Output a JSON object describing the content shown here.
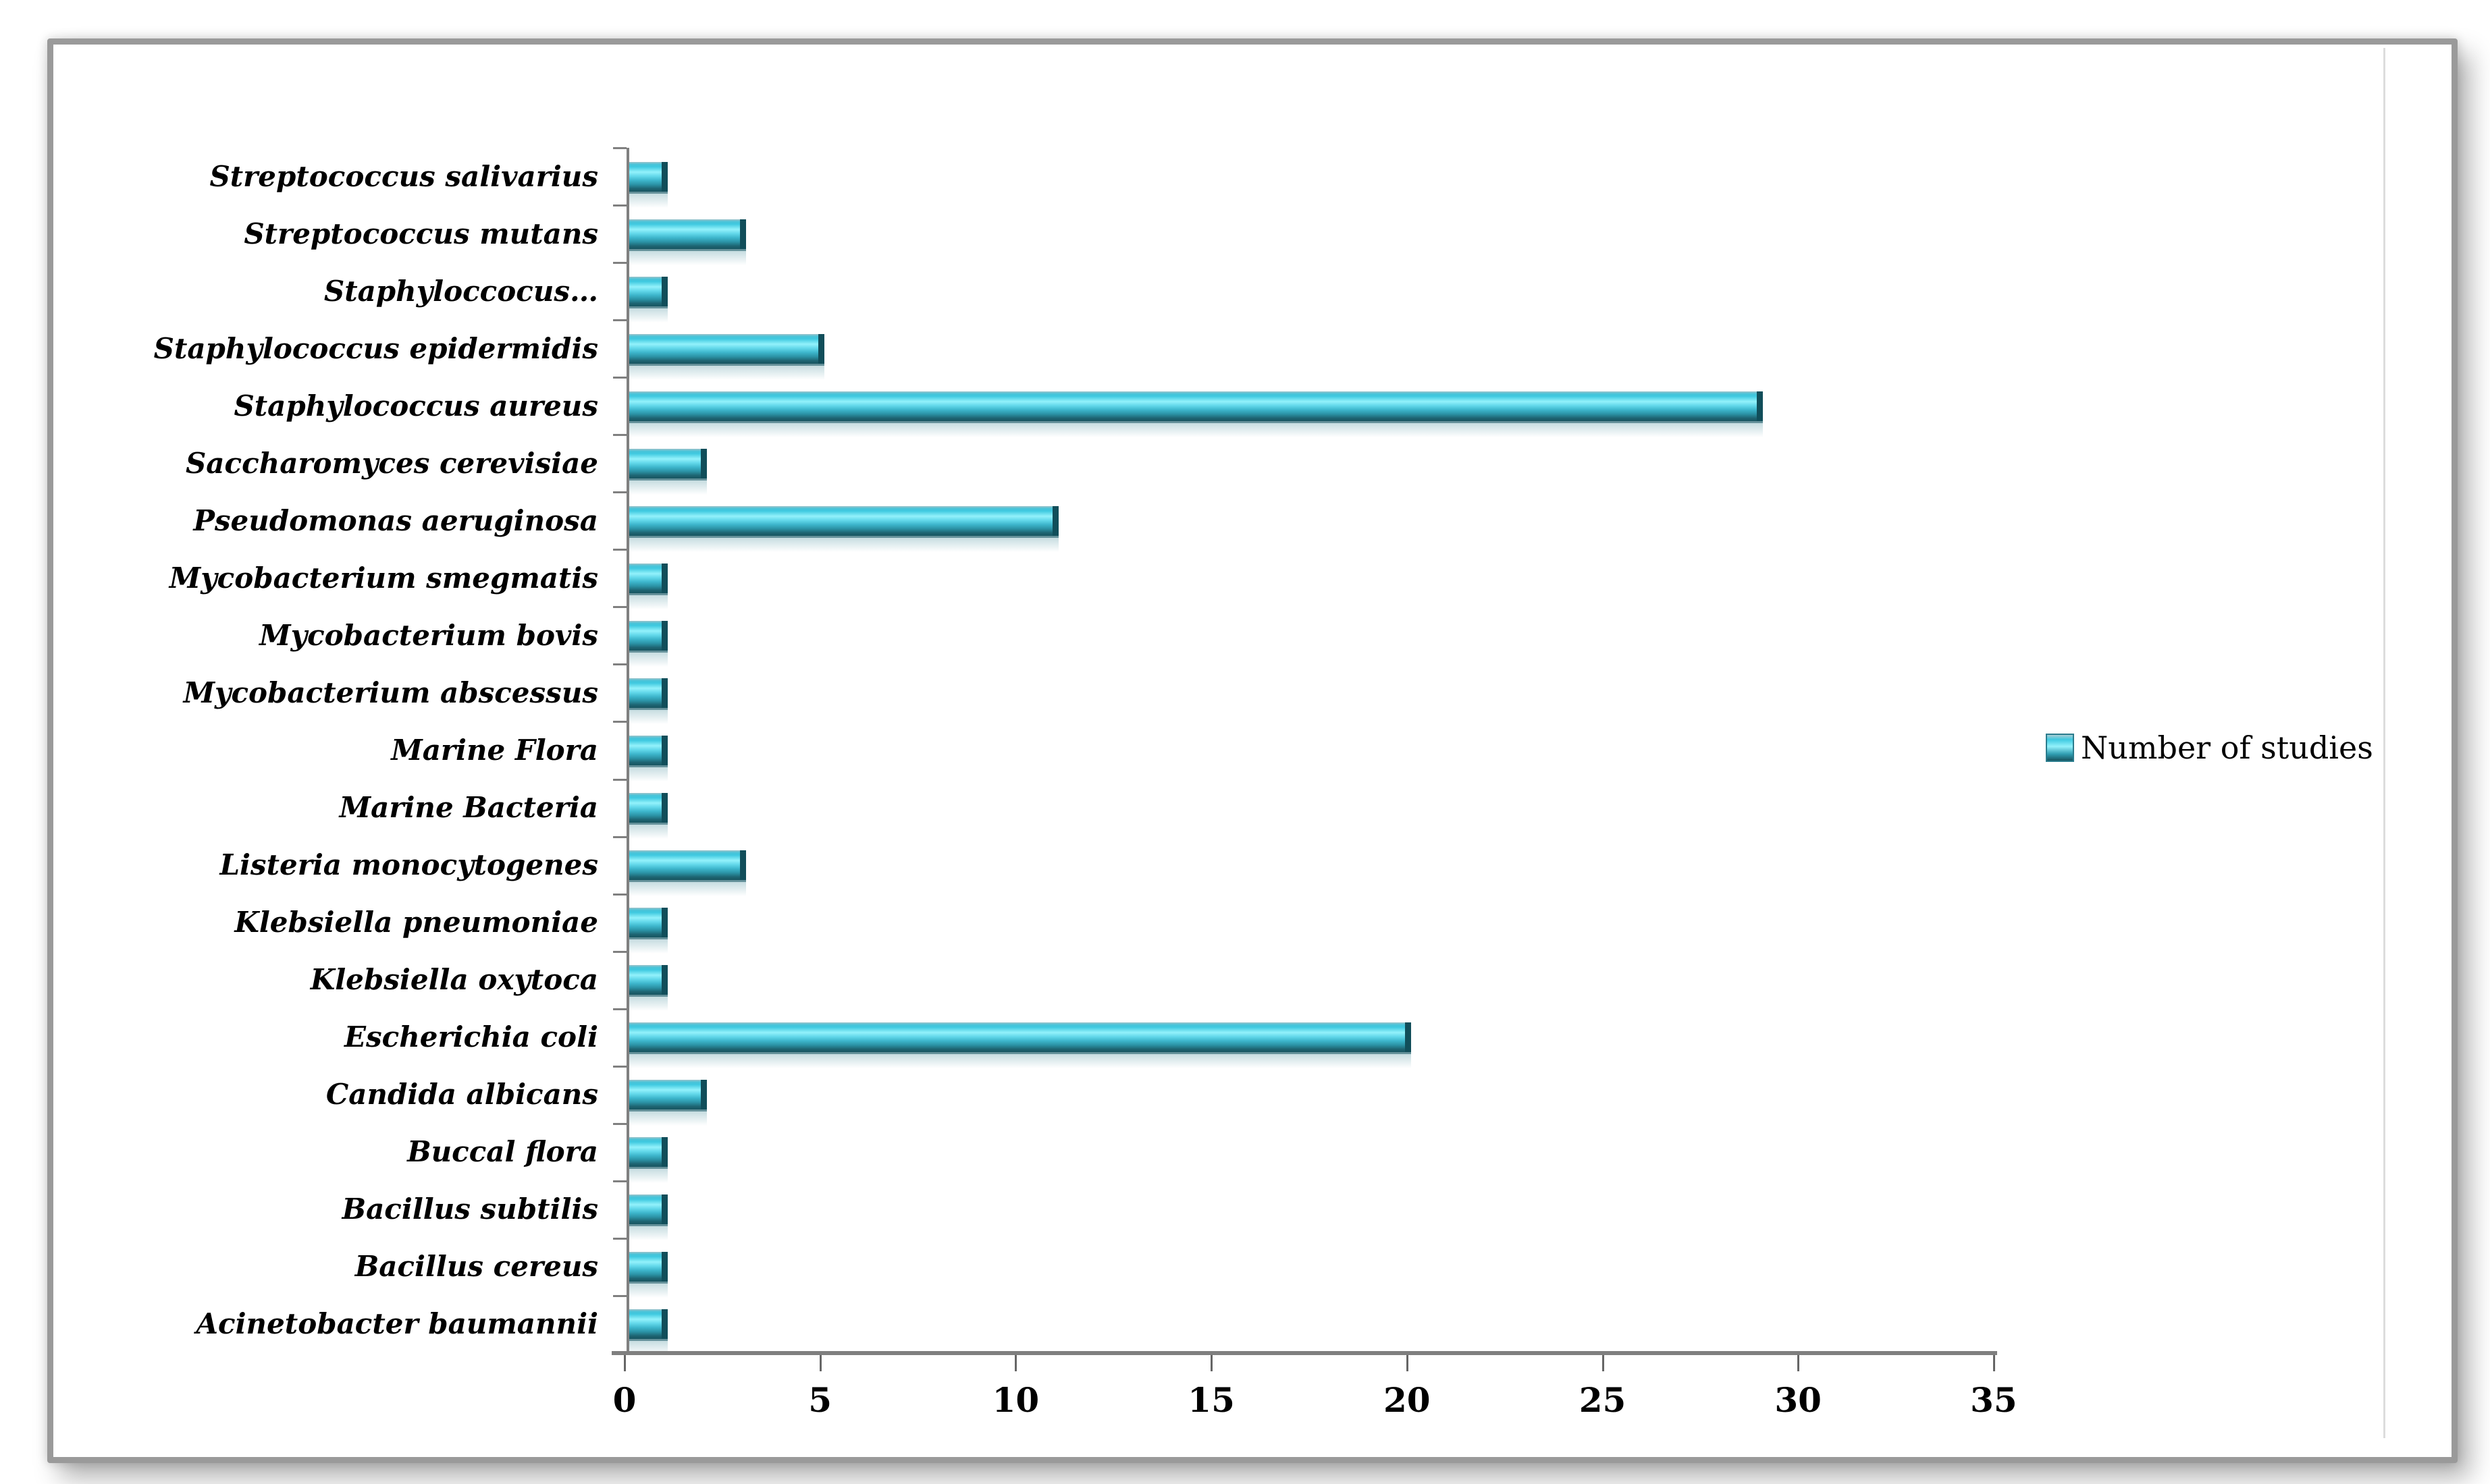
{
  "chart_data": {
    "type": "bar",
    "orientation": "horizontal",
    "categories": [
      "Streptococcus salivarius",
      "Streptococcus mutans",
      "Staphyloccocus…",
      "Staphylococcus epidermidis",
      "Staphylococcus aureus",
      "Saccharomyces cerevisiae",
      "Pseudomonas aeruginosa",
      "Mycobacterium smegmatis",
      "Mycobacterium bovis",
      "Mycobacterium abscessus",
      "Marine Flora",
      "Marine Bacteria",
      "Listeria monocytogenes",
      "Klebsiella pneumoniae",
      "Klebsiella oxytoca",
      "Escherichia coli",
      "Candida albicans",
      "Buccal flora",
      "Bacillus subtilis",
      "Bacillus cereus",
      "Acinetobacter baumannii"
    ],
    "series": [
      {
        "name": "Number of studies",
        "values": [
          1,
          3,
          1,
          5,
          29,
          2,
          11,
          1,
          1,
          1,
          1,
          1,
          3,
          1,
          1,
          20,
          2,
          1,
          1,
          1,
          1
        ]
      }
    ],
    "x_ticks": [
      "0",
      "5",
      "10",
      "15",
      "20",
      "25",
      "30",
      "35"
    ],
    "xlim": [
      0,
      35
    ],
    "grid": false,
    "legend": {
      "label": "Number of studies",
      "position": "right"
    },
    "colors": {
      "bar": "#3ec9e0",
      "bar_dark_edge": "#114e5a",
      "axis": "#7f7f7f",
      "text": "#000000",
      "frame_border": "#9a9a9a"
    }
  }
}
